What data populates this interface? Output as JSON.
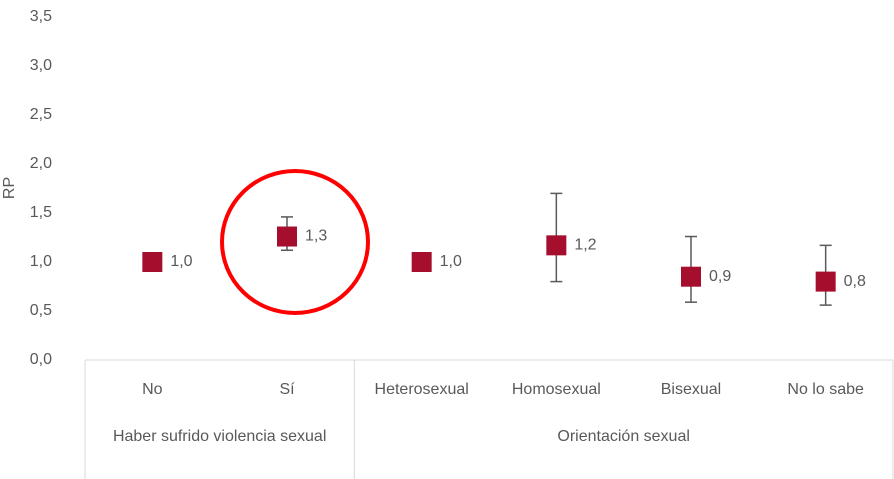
{
  "chart_data": {
    "type": "dot",
    "y_label": "RP",
    "groups": [
      {
        "name": "Haber sufrido violencia sexual",
        "categories": [
          "No",
          "Sí"
        ]
      },
      {
        "name": "Orientación sexual",
        "categories": [
          "Heterosexual",
          "Homosexual",
          "Bisexual",
          "No lo sabe"
        ]
      }
    ],
    "values": [
      1.0,
      1.26,
      1.0,
      1.17,
      0.85,
      0.8
    ],
    "value_labels": [
      "1,0",
      "1,3",
      "1,0",
      "1,2",
      "0,9",
      "0,8"
    ],
    "lower": [
      null,
      1.12,
      null,
      0.8,
      0.59,
      0.56
    ],
    "upper": [
      null,
      1.46,
      null,
      1.7,
      1.26,
      1.17
    ],
    "color": "#a50e2d",
    "ylim": [
      0,
      3.5
    ],
    "yticks": [
      {
        "value": 0,
        "label": "0,0"
      },
      {
        "value": 0.5,
        "label": "0,5"
      },
      {
        "value": 1,
        "label": "1,0"
      },
      {
        "value": 1.5,
        "label": "1,5"
      },
      {
        "value": 2,
        "label": "2,0"
      },
      {
        "value": 2.5,
        "label": "2,5"
      },
      {
        "value": 3,
        "label": "3,0"
      },
      {
        "value": 3.5,
        "label": "3,5"
      }
    ]
  }
}
